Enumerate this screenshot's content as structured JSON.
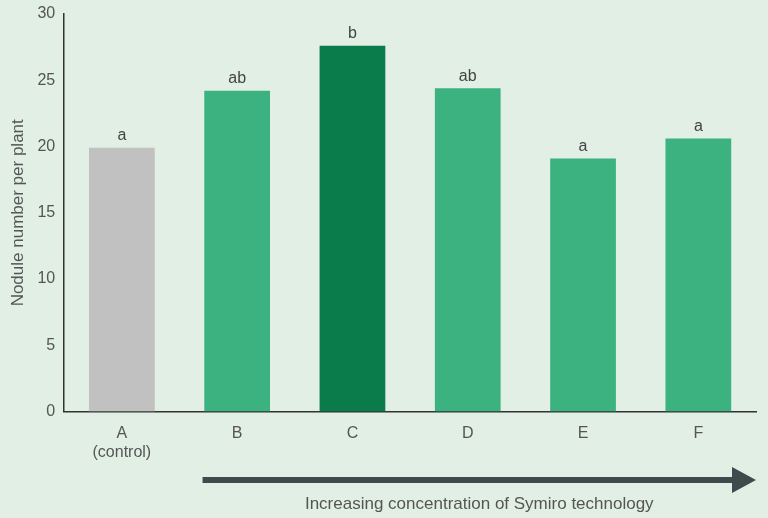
{
  "chart_data": {
    "type": "bar",
    "categories": [
      [
        "A",
        "(control)"
      ],
      "B",
      "C",
      "D",
      "E",
      "F"
    ],
    "values": [
      19.9,
      24.2,
      27.6,
      24.4,
      19.1,
      20.6
    ],
    "colors": [
      "#c0c1c0",
      "#3bb27f",
      "#0a7c4b",
      "#3bb27f",
      "#3bb27f",
      "#3bb27f"
    ],
    "annotations": [
      "a",
      "ab",
      "b",
      "ab",
      "a",
      "a"
    ],
    "y_label": "Nodule number per plant",
    "x_label": "Increasing concentration of Symiro technology",
    "ylim": [
      0,
      30
    ],
    "yticks": [
      0,
      5,
      10,
      15,
      20,
      25,
      30
    ],
    "grid": false
  }
}
